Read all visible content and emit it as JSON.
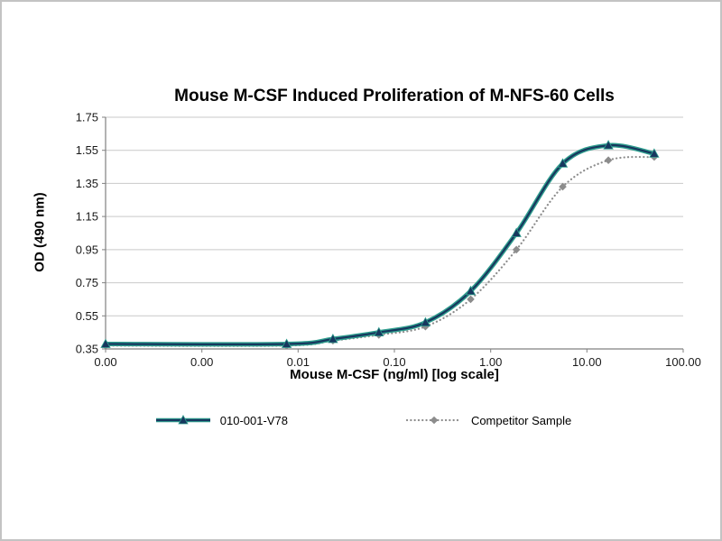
{
  "page": {
    "background": "#ffffff",
    "border_color": "#c3c3c3"
  },
  "chart_data": {
    "type": "line",
    "title": "Mouse M-CSF Induced Proliferation of M-NFS-60 Cells",
    "xlabel": "Mouse M-CSF (ng/ml) [log scale]",
    "ylabel": "OD (490 nm)",
    "x_scale": "log",
    "x_log_range": [
      -4,
      2
    ],
    "x_tick_labels": [
      "0.00",
      "0.00",
      "0.01",
      "0.10",
      "1.00",
      "10.00",
      "100.00"
    ],
    "y_ticks": [
      0.35,
      0.55,
      0.75,
      0.95,
      1.15,
      1.35,
      1.55,
      1.75
    ],
    "ylim": [
      0.35,
      1.75
    ],
    "grid": true,
    "grid_color": "#c9c9c9",
    "axis_color": "#808080",
    "tick_label_color": "#1a1a1a",
    "legend_position": "bottom",
    "series": [
      {
        "name": "010-001-V78",
        "color": "#17375e",
        "accent": "#2f9e8e",
        "marker": "triangle",
        "style": "solid",
        "x": [
          0.0001,
          0.0076,
          0.023,
          0.069,
          0.21,
          0.62,
          1.85,
          5.6,
          16.7,
          50
        ],
        "y": [
          0.38,
          0.38,
          0.41,
          0.45,
          0.51,
          0.7,
          1.05,
          1.47,
          1.58,
          1.53
        ]
      },
      {
        "name": "Competitor Sample",
        "color": "#8c8c8c",
        "marker": "diamond",
        "style": "dotted",
        "x": [
          0.0001,
          0.0076,
          0.023,
          0.069,
          0.21,
          0.62,
          1.85,
          5.6,
          16.7,
          50
        ],
        "y": [
          0.37,
          0.37,
          0.4,
          0.435,
          0.485,
          0.65,
          0.95,
          1.33,
          1.49,
          1.51
        ]
      }
    ]
  }
}
